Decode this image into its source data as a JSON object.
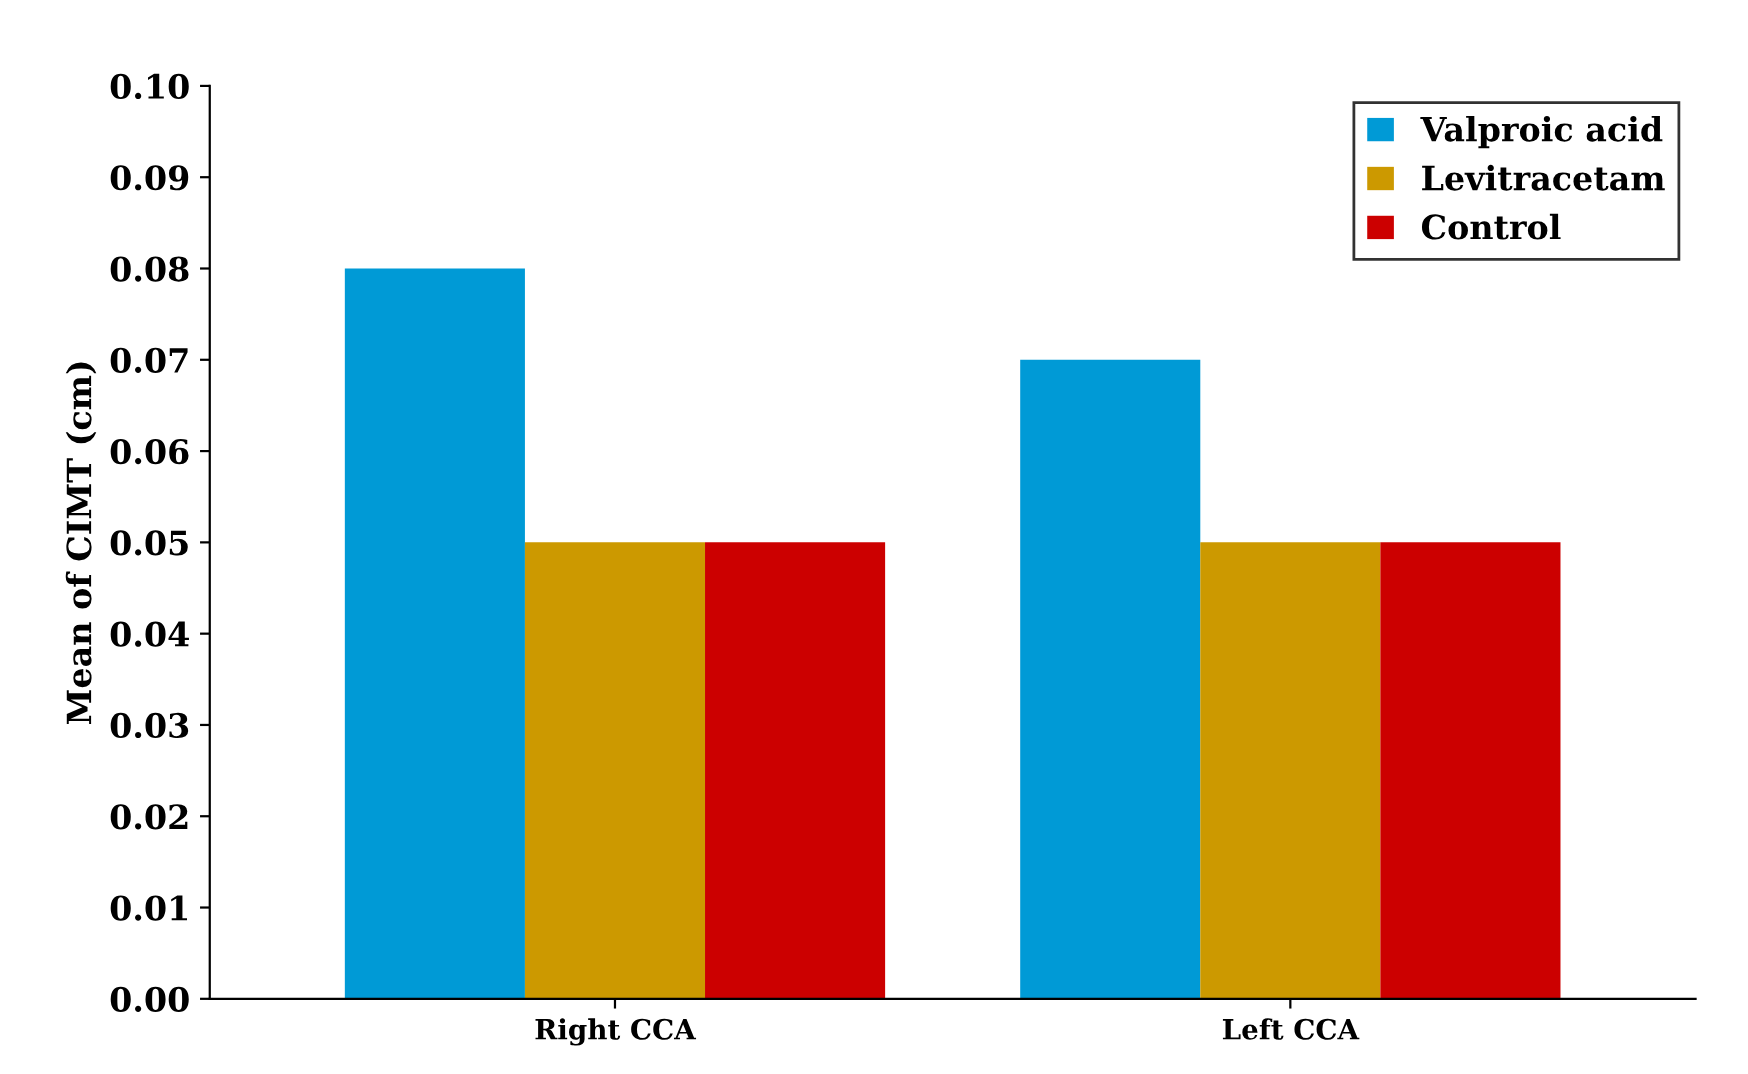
{
  "chart_data": {
    "type": "bar",
    "ylabel": "Mean of CIMT (cm)",
    "categories": [
      "Right CCA",
      "Left CCA"
    ],
    "series": [
      {
        "name": "Valproic acid",
        "color": "#009ad6",
        "values": [
          0.08,
          0.07
        ]
      },
      {
        "name": "Levitracetam",
        "color": "#cc9900",
        "values": [
          0.05,
          0.05
        ]
      },
      {
        "name": "Control",
        "color": "#cc0000",
        "values": [
          0.05,
          0.05
        ]
      }
    ],
    "ylim": [
      0,
      0.1
    ],
    "yticks": [
      {
        "value": 0,
        "label": "0.00"
      },
      {
        "value": 0.01,
        "label": "0.01"
      },
      {
        "value": 0.02,
        "label": "0.02"
      },
      {
        "value": 0.03,
        "label": "0.03"
      },
      {
        "value": 0.04,
        "label": "0.04"
      },
      {
        "value": 0.05,
        "label": "0.05"
      },
      {
        "value": 0.06,
        "label": "0.06"
      },
      {
        "value": 0.07,
        "label": "0.07"
      },
      {
        "value": 0.08,
        "label": "0.08"
      },
      {
        "value": 0.09,
        "label": "0.09"
      },
      {
        "value": 0.1,
        "label": "0.10"
      }
    ],
    "grid": false,
    "legend": "top right"
  }
}
